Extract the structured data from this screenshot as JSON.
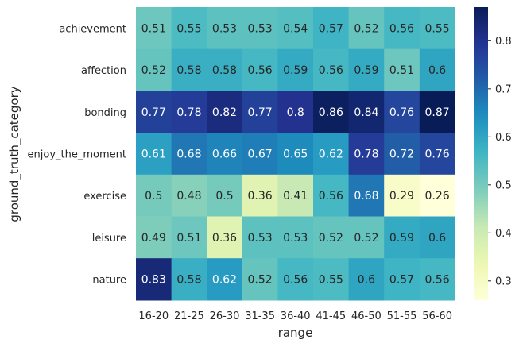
{
  "chart_data": {
    "type": "heatmap",
    "xlabel": "range",
    "ylabel": "ground_truth_category",
    "x_categories": [
      "16-20",
      "21-25",
      "26-30",
      "31-35",
      "36-40",
      "41-45",
      "46-50",
      "51-55",
      "56-60"
    ],
    "y_categories": [
      "achievement",
      "affection",
      "bonding",
      "enjoy_the_moment",
      "exercise",
      "leisure",
      "nature"
    ],
    "values": [
      [
        0.51,
        0.55,
        0.53,
        0.53,
        0.54,
        0.57,
        0.52,
        0.56,
        0.55
      ],
      [
        0.52,
        0.58,
        0.58,
        0.56,
        0.59,
        0.56,
        0.59,
        0.51,
        0.6
      ],
      [
        0.77,
        0.78,
        0.82,
        0.77,
        0.8,
        0.86,
        0.84,
        0.76,
        0.87
      ],
      [
        0.61,
        0.68,
        0.66,
        0.67,
        0.65,
        0.62,
        0.78,
        0.72,
        0.76
      ],
      [
        0.5,
        0.48,
        0.5,
        0.36,
        0.41,
        0.56,
        0.68,
        0.29,
        0.26
      ],
      [
        0.49,
        0.51,
        0.36,
        0.53,
        0.53,
        0.52,
        0.52,
        0.59,
        0.6
      ],
      [
        0.83,
        0.58,
        0.62,
        0.52,
        0.56,
        0.55,
        0.6,
        0.57,
        0.56
      ]
    ],
    "colormap": "YlGnBu",
    "vmin": 0.26,
    "vmax": 0.87,
    "colorbar_ticks": [
      0.3,
      0.4,
      0.5,
      0.6,
      0.7,
      0.8
    ],
    "colorbar_tick_labels": [
      "0.3",
      "0.4",
      "0.5",
      "0.6",
      "0.7",
      "0.8"
    ],
    "annotations": true
  }
}
